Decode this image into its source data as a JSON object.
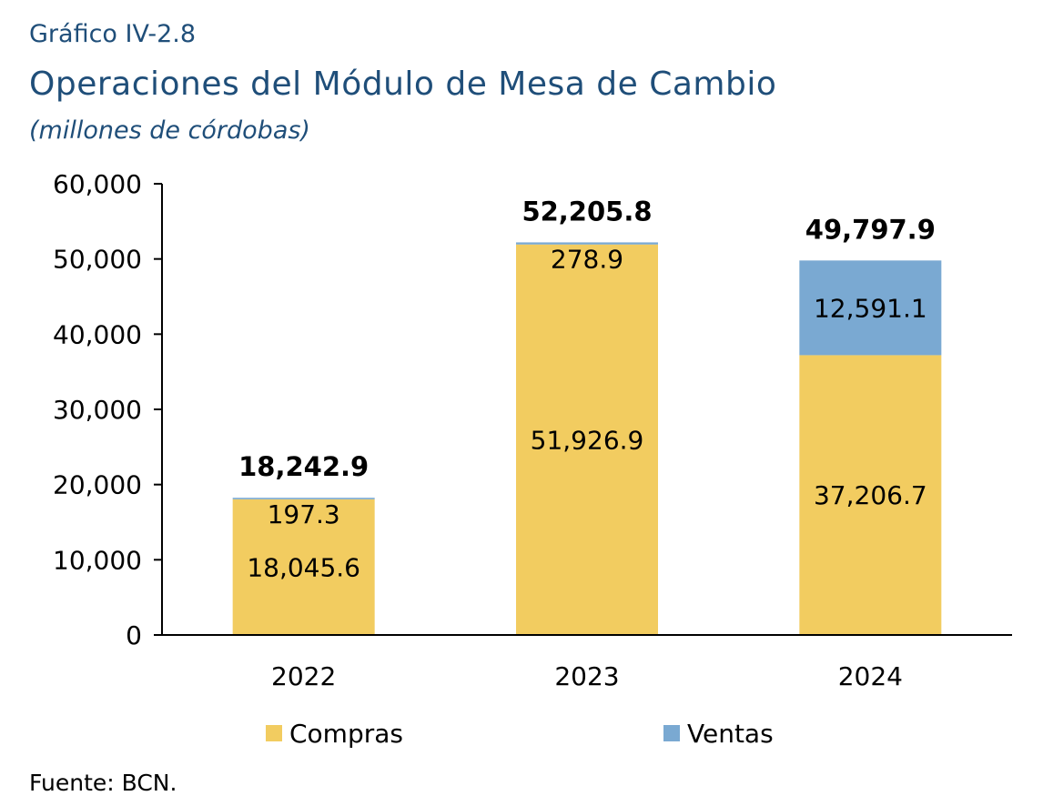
{
  "header": {
    "label": "Gráfico IV-2.8",
    "title": "Operaciones del Módulo de Mesa de Cambio",
    "subtitle": "(millones de córdobas)"
  },
  "footer": {
    "source": "Fuente: BCN."
  },
  "chart_data": {
    "type": "bar",
    "stacked": true,
    "title": "Operaciones del Módulo de Mesa de Cambio",
    "subtitle": "(millones de córdobas)",
    "xlabel": "",
    "ylabel": "",
    "ylim": [
      0,
      60000
    ],
    "yticks": [
      0,
      10000,
      20000,
      30000,
      40000,
      50000,
      60000
    ],
    "ytick_labels": [
      "0",
      "10,000",
      "20,000",
      "30,000",
      "40,000",
      "50,000",
      "60,000"
    ],
    "grid": false,
    "legend_position": "bottom",
    "categories": [
      "2022",
      "2023",
      "2024"
    ],
    "series": [
      {
        "name": "Compras",
        "color": "#f2cc60",
        "values": [
          18045.6,
          51926.9,
          37206.7
        ],
        "labels": [
          "18,045.6",
          "51,926.9",
          "37,206.7"
        ]
      },
      {
        "name": "Ventas",
        "color": "#7aa9d2",
        "values": [
          197.3,
          278.9,
          12591.1
        ],
        "labels": [
          "197.3",
          "278.9",
          "12,591.1"
        ]
      }
    ],
    "totals": [
      18242.9,
      52205.8,
      49797.9
    ],
    "total_labels": [
      "18,242.9",
      "52,205.8",
      "49,797.9"
    ]
  }
}
